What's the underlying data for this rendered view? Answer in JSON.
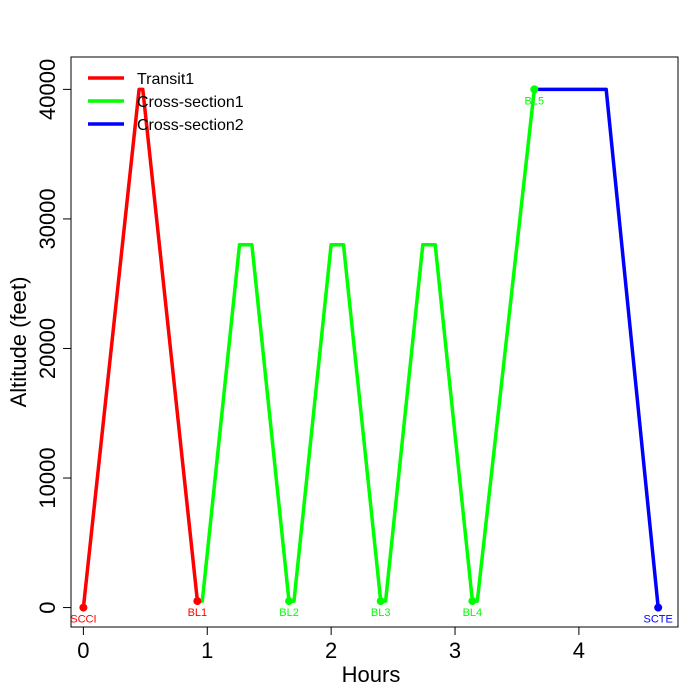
{
  "chart_data": {
    "type": "line",
    "xlabel": "Hours",
    "ylabel": "Altitude (feet)",
    "xlim": [
      -0.1,
      4.8
    ],
    "ylim": [
      -1500,
      42500
    ],
    "xticks": [
      0,
      1,
      2,
      3,
      4
    ],
    "yticks": [
      0,
      10000,
      20000,
      30000,
      40000
    ],
    "legend_position": "top-left",
    "series": [
      {
        "name": "Transit1",
        "color": "#ff0000",
        "x": [
          0,
          0.45,
          0.48,
          0.92
        ],
        "y": [
          0,
          40000,
          40000,
          500
        ]
      },
      {
        "name": "Cross-section1",
        "color": "#00ff00",
        "x": [
          0.92,
          0.96,
          1.26,
          1.36,
          1.66,
          1.7,
          2.0,
          2.1,
          2.4,
          2.44,
          2.74,
          2.84,
          3.14,
          3.18,
          3.64
        ],
        "y": [
          500,
          500,
          28000,
          28000,
          500,
          500,
          28000,
          28000,
          500,
          500,
          28000,
          28000,
          500,
          500,
          40000
        ]
      },
      {
        "name": "Cross-section2",
        "color": "#0000ff",
        "x": [
          3.64,
          4.22,
          4.64
        ],
        "y": [
          40000,
          40000,
          0
        ]
      }
    ],
    "points": [
      {
        "label": "SCCI",
        "x": 0,
        "y": 0,
        "color": "#ff0000",
        "label_pos": "below"
      },
      {
        "label": "BL1",
        "x": 0.92,
        "y": 500,
        "color": "#ff0000",
        "label_pos": "below"
      },
      {
        "label": "BL2",
        "x": 1.66,
        "y": 500,
        "color": "#00ff00",
        "label_pos": "below"
      },
      {
        "label": "BL3",
        "x": 2.4,
        "y": 500,
        "color": "#00ff00",
        "label_pos": "below"
      },
      {
        "label": "BL4",
        "x": 3.14,
        "y": 500,
        "color": "#00ff00",
        "label_pos": "below"
      },
      {
        "label": "BL5",
        "x": 3.64,
        "y": 40000,
        "color": "#00ff00",
        "label_pos": "below"
      },
      {
        "label": "SCTE",
        "x": 4.64,
        "y": 0,
        "color": "#0000ff",
        "label_pos": "below"
      }
    ]
  }
}
